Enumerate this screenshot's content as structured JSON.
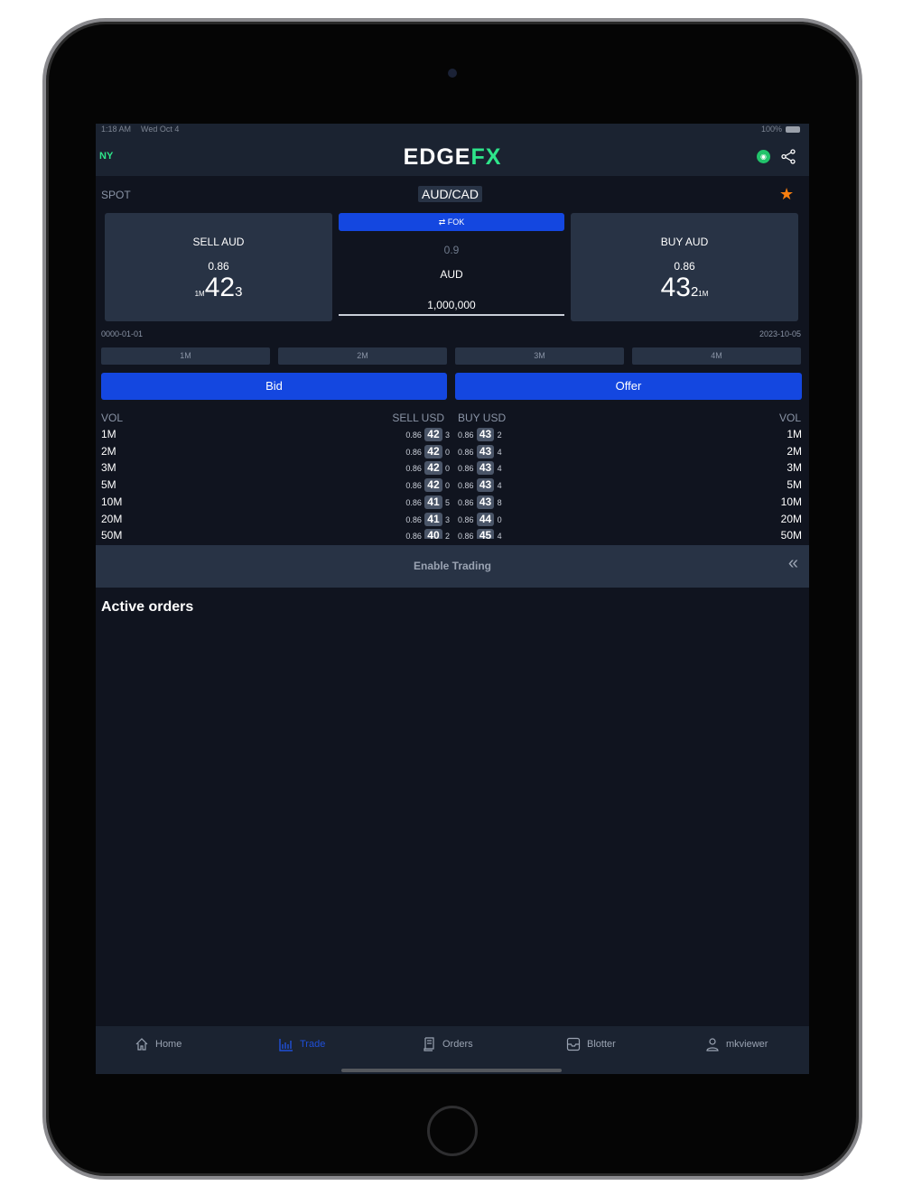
{
  "status_bar": {
    "time": "1:18 AM",
    "date": "Wed Oct 4",
    "battery": "100%"
  },
  "header": {
    "region": "NY",
    "logo_main": "EDGE",
    "logo_accent": "FX"
  },
  "instrument": {
    "type": "SPOT",
    "pair": "AUD/CAD"
  },
  "sell_card": {
    "label": "SELL AUD",
    "prefix": "0.86",
    "big": "42",
    "pip": "3",
    "size": "1M"
  },
  "buy_card": {
    "label": "BUY AUD",
    "prefix": "0.86",
    "big": "43",
    "pip": "2",
    "size": "1M"
  },
  "center": {
    "order_type": "FOK",
    "spread": "0.9",
    "currency": "AUD",
    "amount": "1,000,000"
  },
  "dates": {
    "left": "0000-01-01",
    "right": "2023-10-05"
  },
  "tenors": [
    "1M",
    "2M",
    "3M",
    "4M"
  ],
  "actions": {
    "bid": "Bid",
    "offer": "Offer"
  },
  "ladder": {
    "headers": {
      "vol_left": "VOL",
      "sell": "SELL USD",
      "buy": "BUY USD",
      "vol_right": "VOL"
    },
    "rows": [
      {
        "vol": "1M",
        "sell_pre": "0.86",
        "sell_big": "42",
        "sell_pip": "3",
        "buy_pre": "0.86",
        "buy_big": "43",
        "buy_pip": "2"
      },
      {
        "vol": "2M",
        "sell_pre": "0.86",
        "sell_big": "42",
        "sell_pip": "0",
        "buy_pre": "0.86",
        "buy_big": "43",
        "buy_pip": "4"
      },
      {
        "vol": "3M",
        "sell_pre": "0.86",
        "sell_big": "42",
        "sell_pip": "0",
        "buy_pre": "0.86",
        "buy_big": "43",
        "buy_pip": "4"
      },
      {
        "vol": "5M",
        "sell_pre": "0.86",
        "sell_big": "42",
        "sell_pip": "0",
        "buy_pre": "0.86",
        "buy_big": "43",
        "buy_pip": "4"
      },
      {
        "vol": "10M",
        "sell_pre": "0.86",
        "sell_big": "41",
        "sell_pip": "5",
        "buy_pre": "0.86",
        "buy_big": "43",
        "buy_pip": "8"
      },
      {
        "vol": "20M",
        "sell_pre": "0.86",
        "sell_big": "41",
        "sell_pip": "3",
        "buy_pre": "0.86",
        "buy_big": "44",
        "buy_pip": "0"
      },
      {
        "vol": "50M",
        "sell_pre": "0.86",
        "sell_big": "40",
        "sell_pip": "2",
        "buy_pre": "0.86",
        "buy_big": "45",
        "buy_pip": "4"
      }
    ]
  },
  "enable_trading": "Enable Trading",
  "active_orders_title": "Active orders",
  "nav": [
    {
      "label": "Home",
      "icon": "home-icon"
    },
    {
      "label": "Trade",
      "icon": "bar-chart-icon",
      "active": true
    },
    {
      "label": "Orders",
      "icon": "receipt-icon"
    },
    {
      "label": "Blotter",
      "icon": "inbox-icon"
    },
    {
      "label": "mkviewer",
      "icon": "user-icon"
    }
  ],
  "colors": {
    "accent": "#1447e0",
    "brand_green": "#2ee58a",
    "star": "#f97f0f",
    "card": "#283345",
    "bg": "#10141f"
  }
}
